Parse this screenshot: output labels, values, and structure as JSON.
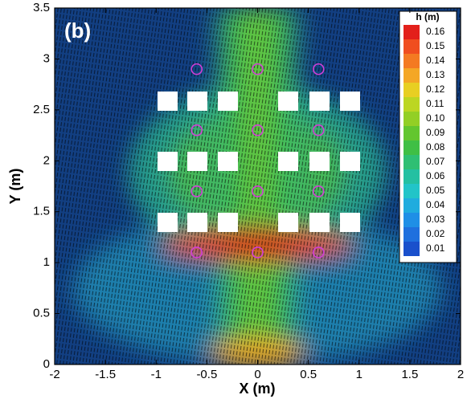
{
  "chart_data": {
    "type": "contour",
    "panel_label": "(b)",
    "x_label": "X (m)",
    "y_label": "Y (m)",
    "xlim": [
      -2,
      2
    ],
    "xticks": [
      -2,
      -1.5,
      -1,
      -0.5,
      0,
      0.5,
      1,
      1.5,
      2
    ],
    "ylim": [
      0,
      3.5
    ],
    "yticks": [
      0,
      0.5,
      1,
      1.5,
      2,
      2.5,
      3,
      3.5
    ],
    "probes": {
      "color": "#d23fd6",
      "x": [
        -0.6,
        0,
        0.6,
        -0.6,
        0,
        0.6,
        -0.6,
        0,
        0.6,
        -0.6,
        0,
        0.6
      ],
      "y": [
        1.1,
        1.1,
        1.1,
        1.7,
        1.7,
        1.7,
        2.3,
        2.3,
        2.3,
        2.9,
        2.9,
        2.9
      ]
    },
    "colorbar": {
      "title": "h (m)",
      "levels": [
        0.16,
        0.15,
        0.14,
        0.13,
        0.12,
        0.11,
        {
          "value": 0.1,
          "label": "0.10"
        },
        0.09,
        0.08,
        0.07,
        0.06,
        0.05,
        0.04,
        0.03,
        0.02,
        0.01
      ],
      "colors": [
        "#e3201b",
        "#f04e1f",
        "#f47a22",
        "#f4a726",
        "#e8cf22",
        "#bcd622",
        "#93cf25",
        "#63c62f",
        "#3fbf45",
        "#2fbf73",
        "#24c0a2",
        "#22c4c8",
        "#20acde",
        "#1f8fe6",
        "#1f70de",
        "#1a50cc"
      ]
    }
  }
}
